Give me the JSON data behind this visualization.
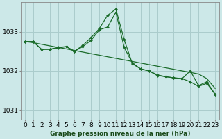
{
  "title": "Graphe pression niveau de la mer (hPa)",
  "bg_color": "#cce8e8",
  "grid_color": "#aacccc",
  "line_color": "#1a6b2a",
  "marker_color": "#1a6b2a",
  "hours": [
    0,
    1,
    2,
    3,
    4,
    5,
    6,
    7,
    8,
    9,
    10,
    11,
    12,
    13,
    14,
    15,
    16,
    17,
    18,
    19,
    20,
    21,
    22,
    23
  ],
  "series_spike1": [
    1032.75,
    1032.75,
    1032.55,
    1032.55,
    1032.6,
    1032.62,
    1032.5,
    1032.62,
    1032.78,
    1033.05,
    1033.12,
    1033.5,
    1032.6,
    1032.2,
    1032.05,
    1032.0,
    1031.9,
    1031.85,
    1031.82,
    1031.8,
    1032.0,
    1031.62,
    1031.72,
    1031.4
  ],
  "series_spike2": [
    1032.75,
    1032.75,
    1032.55,
    1032.55,
    1032.58,
    1032.62,
    1032.5,
    1032.65,
    1032.85,
    1033.08,
    1033.42,
    1033.58,
    1032.8,
    1032.18,
    1032.05,
    1032.0,
    1031.88,
    1031.85,
    1031.82,
    1031.8,
    1031.72,
    1031.6,
    1031.68,
    1031.4
  ],
  "series_trend": [
    1032.75,
    1032.72,
    1032.68,
    1032.64,
    1032.6,
    1032.56,
    1032.52,
    1032.48,
    1032.44,
    1032.4,
    1032.36,
    1032.32,
    1032.28,
    1032.24,
    1032.2,
    1032.16,
    1032.12,
    1032.08,
    1032.04,
    1032.0,
    1031.96,
    1031.92,
    1031.8,
    1031.55
  ],
  "ylim_min": 1030.75,
  "ylim_max": 1033.75,
  "yticks": [
    1031,
    1032,
    1033
  ],
  "tick_fontsize": 6.5,
  "title_fontsize": 6.5
}
